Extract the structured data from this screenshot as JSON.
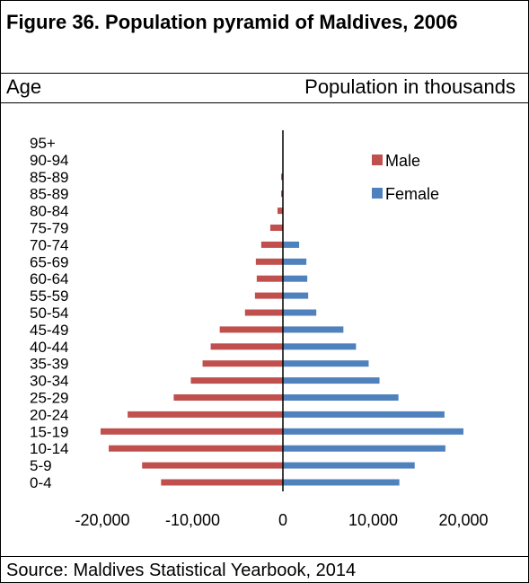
{
  "title": "Figure 36. Population pyramid of Maldives, 2006",
  "header": {
    "left": "Age",
    "right": "Population in thousands"
  },
  "source": "Source: Maldives Statistical Yearbook, 2014",
  "colors": {
    "male": "#c0504d",
    "female": "#4f81bd",
    "axis": "#000000"
  },
  "chart_data": {
    "type": "bar",
    "orientation": "horizontal",
    "categories": [
      "0-4",
      "5-9",
      "10-14",
      "15-19",
      "20-24",
      "25-29",
      "30-34",
      "35-39",
      "40-44",
      "45-49",
      "50-54",
      "55-59",
      "60-64",
      "65-69",
      "70-74",
      "75-79",
      "80-84",
      "85-89",
      "85-89",
      "90-94",
      "95+"
    ],
    "series": [
      {
        "name": "Male",
        "values": [
          -13500,
          -15600,
          -19300,
          -20200,
          -17200,
          -12100,
          -10200,
          -8900,
          -8000,
          -7000,
          -4200,
          -3100,
          -2900,
          -3000,
          -2400,
          -1400,
          -600,
          -200,
          -200,
          0,
          0
        ]
      },
      {
        "name": "Female",
        "values": [
          12900,
          14600,
          18000,
          20000,
          17900,
          12800,
          10700,
          9500,
          8100,
          6700,
          3700,
          2800,
          2700,
          2600,
          1800,
          0,
          0,
          0,
          0,
          0,
          0
        ]
      }
    ],
    "xlim": [
      -20000,
      20000
    ],
    "xticks": [
      "-20,000",
      "-10,000",
      "0",
      "10,000",
      "20,000"
    ],
    "xtick_values": [
      -20000,
      -10000,
      0,
      10000,
      20000
    ],
    "grid": false,
    "legend": "top-right"
  }
}
